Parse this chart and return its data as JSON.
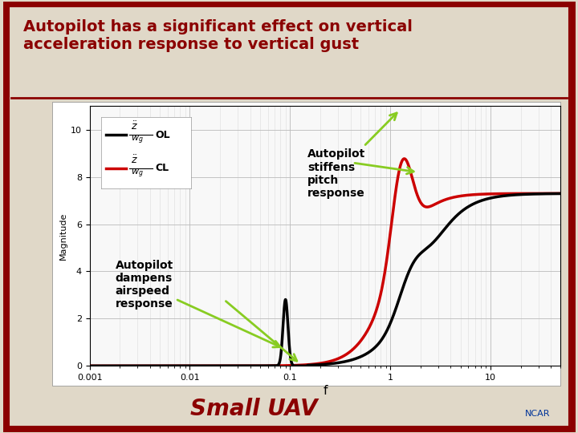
{
  "title": "Autopilot has a significant effect on vertical\nacceleration response to vertical gust",
  "title_color": "#8B0000",
  "bg_color": "#E0D8C8",
  "plot_bg": "#F8F8F8",
  "white_box_color": "#FFFFFF",
  "border_color": "#8B0000",
  "xlabel": "f",
  "ylabel": "Magnitude",
  "ylim": [
    0,
    11
  ],
  "yticks": [
    0,
    2,
    4,
    6,
    8,
    10
  ],
  "xlim_log": [
    -3,
    1.7
  ],
  "footer_text": "Small UAV",
  "footer_color": "#8B0000",
  "ol_color": "#000000",
  "cl_color": "#CC0000",
  "annotation1_text": "Autopilot\nstiffens\npitch\nresponse",
  "annotation2_text": "Autopilot\ndampens\nairspeed\nresponse",
  "arrow_color": "#88CC22"
}
